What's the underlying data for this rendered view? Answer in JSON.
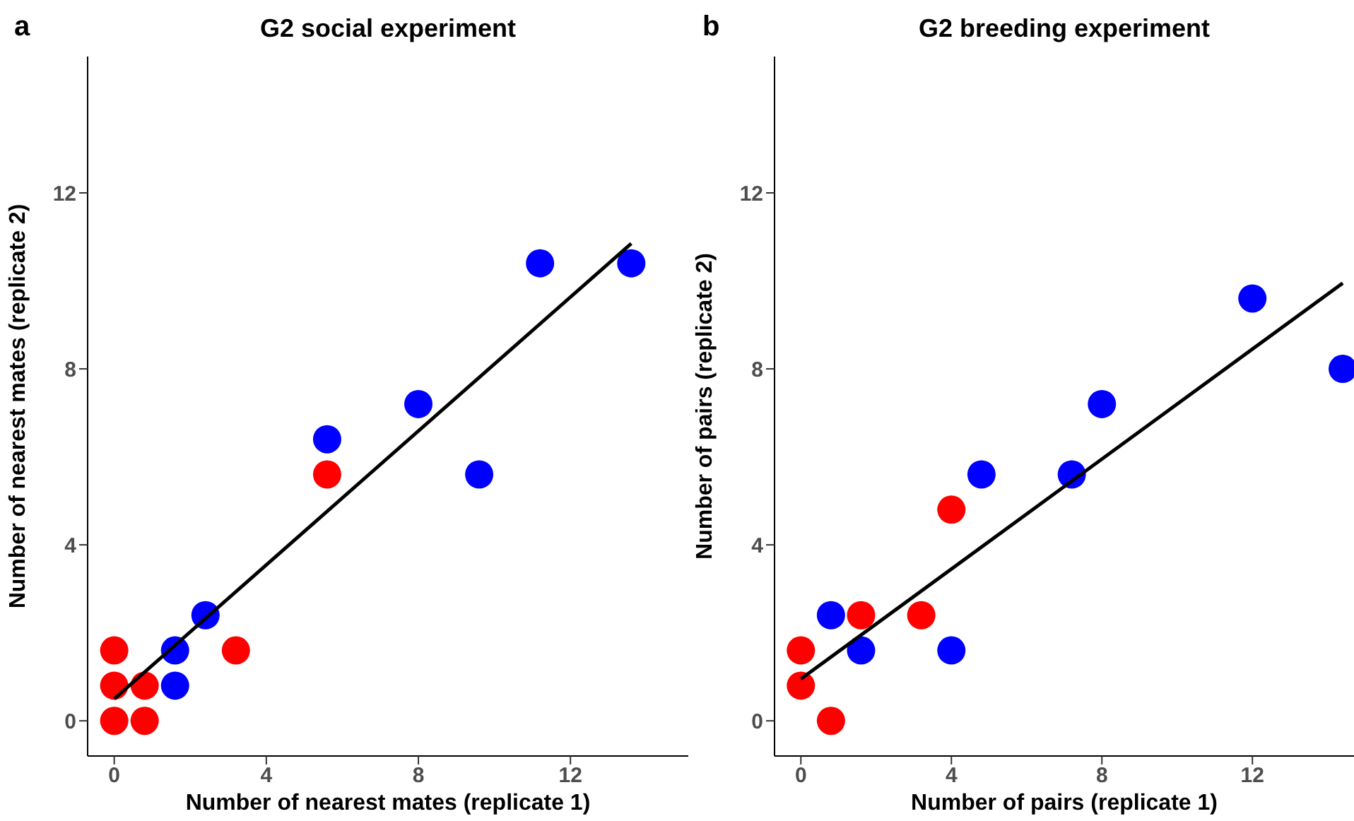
{
  "chart_data": [
    {
      "type": "scatter",
      "title": "G2 social experiment",
      "annotations": [
        "a"
      ],
      "xlabel": "Number of nearest mates (replicate 1)",
      "ylabel": "Number of nearest mates (replicate 2)",
      "xlim": [
        -0.7,
        15.1
      ],
      "ylim": [
        -0.8,
        15.1
      ],
      "xticks": [
        0,
        4,
        8,
        12
      ],
      "yticks": [
        0,
        4,
        8,
        12
      ],
      "grid": false,
      "legend": false,
      "marker": "circle",
      "series": [
        {
          "type": "scatter",
          "color": "#ff0000",
          "x": [
            0,
            0,
            0,
            0.8,
            0.8,
            3.2,
            5.6
          ],
          "values": [
            0,
            0.8,
            1.6,
            0.8,
            0,
            1.6,
            5.6
          ]
        },
        {
          "type": "scatter",
          "color": "#0000ff",
          "x": [
            1.6,
            1.6,
            2.4,
            5.6,
            8,
            9.6,
            11.2,
            13.6
          ],
          "values": [
            1.6,
            0.8,
            2.4,
            6.4,
            7.2,
            5.6,
            10.4,
            10.4
          ]
        },
        {
          "type": "line",
          "color": "#000000",
          "marker": "none",
          "x": [
            0,
            13.6
          ],
          "values": [
            0.5,
            10.85
          ]
        }
      ]
    },
    {
      "type": "scatter",
      "title": "G2 breeding experiment",
      "annotations": [
        "b"
      ],
      "xlabel": "Number of pairs (replicate 1)",
      "ylabel": "Number of pairs (replicate 2)",
      "xlim": [
        -0.7,
        14.7
      ],
      "ylim": [
        -0.8,
        15.1
      ],
      "xticks": [
        0,
        4,
        8,
        12
      ],
      "yticks": [
        0,
        4,
        8,
        12
      ],
      "grid": false,
      "legend": false,
      "marker": "circle",
      "series": [
        {
          "type": "scatter",
          "color": "#ff0000",
          "x": [
            0,
            0,
            0.8,
            1.6,
            3.2,
            4
          ],
          "values": [
            1.6,
            0.8,
            0,
            2.4,
            2.4,
            4.8
          ]
        },
        {
          "type": "scatter",
          "color": "#0000ff",
          "x": [
            0.8,
            1.6,
            4,
            4.8,
            7.2,
            8,
            12,
            14.4
          ],
          "values": [
            2.4,
            1.6,
            1.6,
            5.6,
            5.6,
            7.2,
            9.6,
            8
          ]
        },
        {
          "type": "line",
          "color": "#000000",
          "marker": "none",
          "x": [
            0,
            14.4
          ],
          "values": [
            0.95,
            9.95
          ]
        }
      ]
    }
  ]
}
